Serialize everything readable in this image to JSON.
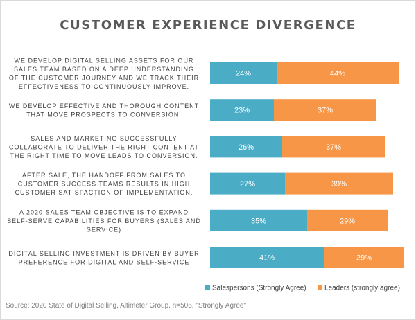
{
  "chart_data": {
    "type": "bar",
    "stacked": true,
    "orientation": "horizontal",
    "title": "CUSTOMER EXPERIENCE DIVERGENCE",
    "categories": [
      [
        "WE DEVELOP DIGITAL SELLING ASSETS FOR OUR",
        "SALES TEAM BASED ON A DEEP UNDERSTANDING",
        "OF THE CUSTOMER JOURNEY AND WE TRACK THEIR",
        "EFFECTIVENESS TO CONTINUOUSLY IMPROVE."
      ],
      [
        "WE DEVELOP EFFECTIVE AND THOROUGH CONTENT",
        "THAT MOVE PROSPECTS TO CONVERSION."
      ],
      [
        "SALES AND MARKETING SUCCESSFULLY",
        "COLLABORATE TO DELIVER THE RIGHT CONTENT AT",
        "THE RIGHT TIME TO MOVE LEADS TO CONVERSION."
      ],
      [
        "AFTER SALE, THE HANDOFF FROM SALES TO",
        "CUSTOMER SUCCESS TEAMS RESULTS IN HIGH",
        "CUSTOMER SATISFACTION OF IMPLEMENTATION."
      ],
      [
        "A 2020 SALES TEAM OBJECTIVE IS TO EXPAND",
        "SELF-SERVE CAPABILITIES FOR BUYERS (SALES AND",
        "SERVICE)"
      ],
      [
        "DIGITAL SELLING INVESTMENT IS DRIVEN BY BUYER",
        "PREFERENCE FOR DIGITAL AND SELF-SERVICE"
      ]
    ],
    "series": [
      {
        "name": "Salespersons (Strongly Agree)",
        "color": "#4bacc6",
        "values": [
          24,
          23,
          26,
          27,
          35,
          41
        ]
      },
      {
        "name": "Leaders (strongly agree)",
        "color": "#f79646",
        "values": [
          44,
          37,
          37,
          39,
          29,
          29
        ]
      }
    ],
    "data_label_suffix": "%",
    "legend_position": "bottom-right",
    "grid": false
  },
  "source": "Source: 2020 State of Digital Selling, Altimeter Group, n=506, \"Strongly Agree\""
}
